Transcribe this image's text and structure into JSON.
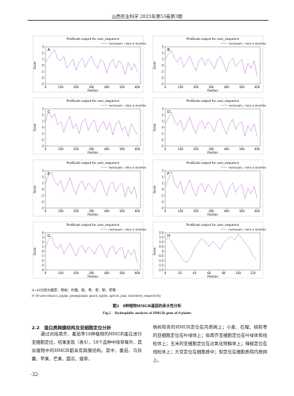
{
  "header": "山西农业科学 2025年第53卷第3期",
  "chart_data": [
    {
      "type": "line",
      "label": "A",
      "title": "ProtScale output for user_sequence",
      "legend": "Hydropath. / Kyte & Doolittle",
      "xlabel": "Position",
      "ylabel": "Score",
      "color": "#b46ac8",
      "xlim": [
        0,
        620
      ],
      "xticks": [
        0,
        100,
        200,
        300,
        400,
        500,
        600
      ],
      "ylim": [
        -3,
        3
      ],
      "yticks": [
        -3,
        -2,
        -1,
        0,
        1,
        2,
        3
      ],
      "x": [
        0,
        20,
        40,
        60,
        80,
        100,
        120,
        140,
        160,
        180,
        200,
        220,
        240,
        260,
        280,
        300,
        320,
        340,
        360,
        380,
        400,
        420,
        440,
        460,
        480,
        500,
        520,
        540,
        560,
        580,
        600
      ],
      "values": [
        0.5,
        1.2,
        2.0,
        2.6,
        1.0,
        0.8,
        1.5,
        -0.5,
        0.3,
        1.0,
        -0.8,
        0.5,
        1.2,
        -0.3,
        0.8,
        1.5,
        0.2,
        -0.5,
        1.0,
        0.5,
        -1.2,
        0.3,
        1.0,
        -0.5,
        0.8,
        0.2,
        -1.5,
        0.5,
        -0.8,
        0.3,
        -1.0
      ]
    },
    {
      "type": "line",
      "label": "B",
      "title": "ProtScale output for user_sequence",
      "legend": "Hydropath. / Kyte & Doolittle",
      "xlabel": "Position",
      "ylabel": "Score",
      "color": "#b46ac8",
      "xlim": [
        0,
        620
      ],
      "xticks": [
        0,
        100,
        200,
        300,
        400,
        500,
        600
      ],
      "ylim": [
        -3,
        3
      ],
      "yticks": [
        -3,
        -2,
        -1,
        0,
        1,
        2,
        3
      ],
      "x": [
        0,
        20,
        40,
        60,
        80,
        100,
        120,
        140,
        160,
        180,
        200,
        220,
        240,
        260,
        280,
        300,
        320,
        340,
        360,
        380,
        400,
        420,
        440,
        460,
        480,
        500,
        520,
        540,
        560,
        580,
        600
      ],
      "values": [
        1.0,
        1.8,
        2.4,
        1.2,
        0.5,
        1.4,
        -0.3,
        0.6,
        1.6,
        0.2,
        -0.9,
        0.7,
        1.3,
        0.0,
        1.1,
        0.4,
        -0.6,
        0.9,
        1.5,
        0.3,
        -1.0,
        0.6,
        1.2,
        -0.2,
        0.5,
        1.0,
        -1.3,
        0.4,
        -0.5,
        0.8,
        -1.8
      ]
    },
    {
      "type": "line",
      "label": "C",
      "title": "ProtScale output for user_sequence",
      "legend": "Hydropath. / Kyte & Doolittle",
      "xlabel": "Position",
      "ylabel": "Score",
      "color": "#b46ac8",
      "xlim": [
        0,
        620
      ],
      "xticks": [
        0,
        100,
        200,
        300,
        400,
        500,
        600
      ],
      "ylim": [
        -3,
        3
      ],
      "yticks": [
        -3,
        -2,
        -1,
        0,
        1,
        2,
        3
      ],
      "x": [
        0,
        20,
        40,
        60,
        80,
        100,
        120,
        140,
        160,
        180,
        200,
        220,
        240,
        260,
        280,
        300,
        320,
        340,
        360,
        380,
        400,
        420,
        440,
        460,
        480,
        500,
        520,
        540,
        560,
        580,
        600
      ],
      "values": [
        0.8,
        2.8,
        1.5,
        2.2,
        0.4,
        1.0,
        -0.8,
        0.9,
        1.8,
        -0.2,
        0.6,
        -1.0,
        0.9,
        1.4,
        -0.5,
        0.7,
        1.2,
        -0.8,
        0.3,
        1.0,
        -0.4,
        0.8,
        -1.2,
        0.5,
        1.1,
        -0.6,
        0.2,
        -1.5,
        0.6,
        -0.3,
        -1.2
      ]
    },
    {
      "type": "line",
      "label": "D",
      "title": "ProtScale output for user_sequence",
      "legend": "Hydropath. / Kyte & Doolittle",
      "xlabel": "Position",
      "ylabel": "Score",
      "color": "#b46ac8",
      "xlim": [
        0,
        620
      ],
      "xticks": [
        0,
        100,
        200,
        300,
        400,
        500,
        600
      ],
      "ylim": [
        -3,
        3
      ],
      "yticks": [
        -3,
        -2,
        -1,
        0,
        1,
        2,
        3
      ],
      "x": [
        0,
        20,
        40,
        60,
        80,
        100,
        120,
        140,
        160,
        180,
        200,
        220,
        240,
        260,
        280,
        300,
        320,
        340,
        360,
        380,
        400,
        420,
        440,
        460,
        480,
        500,
        520,
        540,
        560,
        580,
        600
      ],
      "values": [
        0.6,
        1.5,
        2.5,
        1.0,
        0.3,
        1.2,
        -0.6,
        0.5,
        1.7,
        0.1,
        -1.0,
        0.6,
        1.1,
        -0.2,
        0.9,
        0.3,
        -0.7,
        1.0,
        1.4,
        0.0,
        -1.1,
        0.5,
        1.3,
        -0.3,
        0.6,
        0.9,
        -1.4,
        0.3,
        -0.6,
        0.6,
        -1.5
      ]
    },
    {
      "type": "line",
      "label": "E",
      "title": "ProtScale output for user_sequence",
      "legend": "Hydropath. / Kyte & Doolittle",
      "xlabel": "Position",
      "ylabel": "Score",
      "color": "#b46ac8",
      "xlim": [
        0,
        620
      ],
      "xticks": [
        0,
        100,
        200,
        300,
        400,
        500,
        600
      ],
      "ylim": [
        -3,
        3
      ],
      "yticks": [
        -3,
        -2,
        -1,
        0,
        1,
        2,
        3
      ],
      "x": [
        0,
        20,
        40,
        60,
        80,
        100,
        120,
        140,
        160,
        180,
        200,
        220,
        240,
        260,
        280,
        300,
        320,
        340,
        360,
        380,
        400,
        420,
        440,
        460,
        480,
        500,
        520,
        540,
        560,
        580,
        600
      ],
      "values": [
        1.0,
        2.2,
        2.8,
        1.3,
        0.6,
        1.5,
        -0.4,
        0.7,
        1.9,
        0.3,
        -0.8,
        0.8,
        1.4,
        -0.1,
        1.0,
        0.5,
        -0.5,
        1.1,
        1.6,
        0.2,
        -1.0,
        0.7,
        1.2,
        -0.4,
        0.6,
        1.0,
        -1.2,
        0.5,
        -0.7,
        0.4,
        -1.6
      ]
    },
    {
      "type": "line",
      "label": "F",
      "title": "ProtScale output for user_sequence",
      "legend": "Hydropath. / Kyte & Doolittle",
      "xlabel": "Position",
      "ylabel": "Score",
      "color": "#b46ac8",
      "xlim": [
        0,
        620
      ],
      "xticks": [
        0,
        100,
        200,
        300,
        400,
        500,
        600
      ],
      "ylim": [
        -3,
        3
      ],
      "yticks": [
        -3,
        -2,
        -1,
        0,
        1,
        2,
        3
      ],
      "x": [
        0,
        20,
        40,
        60,
        80,
        100,
        120,
        140,
        160,
        180,
        200,
        220,
        240,
        260,
        280,
        300,
        320,
        340,
        360,
        380,
        400,
        420,
        440,
        460,
        480,
        500,
        520,
        540,
        560,
        580,
        600
      ],
      "values": [
        0.4,
        1.6,
        2.9,
        1.1,
        0.2,
        1.3,
        -0.7,
        0.4,
        1.5,
        0.0,
        -1.1,
        0.5,
        1.0,
        -0.4,
        0.8,
        0.2,
        -0.8,
        0.9,
        1.3,
        -0.1,
        -1.2,
        0.4,
        1.1,
        -0.5,
        0.4,
        0.8,
        -1.5,
        0.2,
        -0.7,
        0.5,
        -1.4
      ]
    },
    {
      "type": "line",
      "label": "G",
      "title": "ProtScale output for user_sequence",
      "legend": "Hydropath. / Kyte & Doolittle",
      "xlabel": "Position",
      "ylabel": "Score",
      "color": "#b46ac8",
      "xlim": [
        0,
        620
      ],
      "xticks": [
        0,
        100,
        200,
        300,
        400,
        500,
        600
      ],
      "ylim": [
        -4,
        4
      ],
      "yticks": [
        -4,
        -3,
        -2,
        -1,
        0,
        1,
        2,
        3,
        4
      ],
      "x": [
        0,
        20,
        40,
        60,
        80,
        100,
        120,
        140,
        160,
        180,
        200,
        220,
        240,
        260,
        280,
        300,
        320,
        340,
        360,
        380,
        400,
        420,
        440,
        460,
        480,
        500,
        520,
        540,
        560,
        580,
        600
      ],
      "values": [
        0.8,
        2.5,
        3.2,
        1.4,
        0.5,
        1.6,
        -0.6,
        0.6,
        1.8,
        0.2,
        -1.0,
        0.7,
        1.3,
        -0.3,
        1.0,
        0.4,
        -0.7,
        1.0,
        1.5,
        0.1,
        -1.3,
        0.6,
        1.2,
        -0.6,
        0.5,
        0.9,
        -1.6,
        0.3,
        -0.8,
        0.4,
        -2.5
      ]
    },
    {
      "type": "line",
      "label": "H",
      "title": "ProtScale output for user_sequence",
      "legend": "Hydropath. / Kyte & Doolittle",
      "xlabel": "Position",
      "ylabel": "Score",
      "color": "#b46ac8",
      "xlim": [
        0,
        130
      ],
      "xticks": [
        0,
        20,
        40,
        60,
        80,
        100,
        120
      ],
      "ylim": [
        -2,
        2
      ],
      "yticks": [
        {
          "value": -2,
          "label": "-2.0"
        },
        -1.5,
        {
          "value": -1,
          "label": "-1.0"
        },
        -0.5,
        0,
        0.5,
        {
          "value": 1,
          "label": "1.0"
        },
        1.5,
        {
          "value": 2,
          "label": "2.0"
        }
      ],
      "x": [
        0,
        5,
        10,
        15,
        20,
        25,
        30,
        35,
        40,
        45,
        50,
        55,
        60,
        65,
        70,
        75,
        80,
        85,
        90,
        95,
        100,
        105,
        110,
        115,
        120,
        125
      ],
      "values": [
        1.2,
        1.5,
        0.8,
        0.2,
        -0.4,
        -1.0,
        -1.2,
        -0.6,
        0.3,
        0.9,
        1.4,
        1.0,
        0.5,
        1.1,
        0.7,
        0.2,
        0.9,
        1.3,
        1.6,
        1.2,
        1.9,
        1.4,
        0.8,
        0.3,
        -0.5,
        -0.9
      ]
    }
  ],
  "caption": {
    "note_cn": "A~H分别为烟草、杨树、石榴、桃、枣、杏、梨、草莓",
    "note_en": "A~H were tobacco, poplar, pomegranate, peach, jujube, apricot, pear, strawberry, respectively",
    "title_cn": "图2　8种植物HMGR基因的亲水性分析",
    "title_en": "Fig.2　Hydrophilic analysis of HMGR gene of 8 plants"
  },
  "section": {
    "heading": "2.2　蛋白质跨膜结构及亚细胞定位分析",
    "left": "通过对拟南芥、番茄等18种植物的HMGR蛋白进行亚细胞定位，结果发现（表4），18个品种中除草莓外，其余植物中的HMGR都具有跨膜结构。其中，番茄、马铃薯、苹果、芒果、甜瓜、烟草、",
    "right": "杨树和杏的HMGR定位在内质网上；小麦、石榴、桃和枣的亚细胞定位在叶绿体上；拟南芥亚细胞定位在叶绿体和线粒体上；玉米的亚细胞定位在过氧化物酶体上；辣椒定位在线粒体上；大豆定位在细胞质中；梨定位在细胞质和内质网上。"
  },
  "page_number": "·32·"
}
